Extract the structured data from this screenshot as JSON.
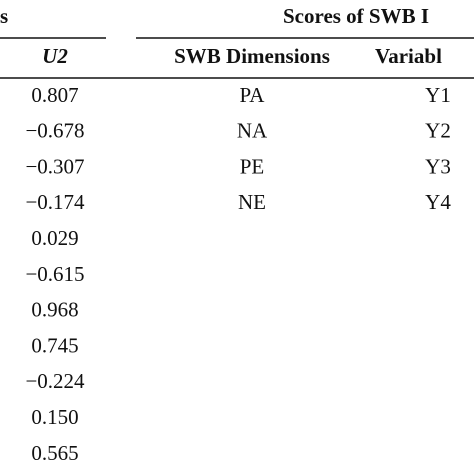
{
  "header": {
    "left": "s",
    "right": "Scores of SWB I"
  },
  "table": {
    "columns": [
      "U2",
      "SWB Dimensions",
      "Variabl"
    ],
    "u2": [
      "0.807",
      "−0.678",
      "−0.307",
      "−0.174",
      "0.029",
      "−0.615",
      "0.968",
      "0.745",
      "−0.224",
      "0.150",
      "0.565"
    ],
    "dimensions": [
      "PA",
      "NA",
      "PE",
      "NE"
    ],
    "variables": [
      "Y1",
      "Y2",
      "Y3",
      "Y4"
    ]
  }
}
